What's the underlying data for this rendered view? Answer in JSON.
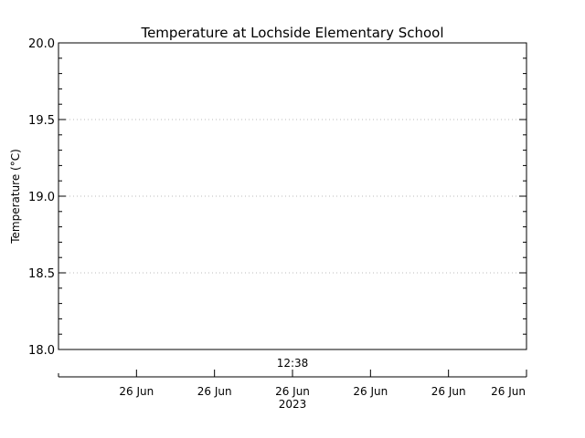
{
  "chart_data": {
    "type": "line",
    "title": "Temperature at Lochside Elementary School",
    "ylabel": "Temperature (°C)",
    "xlabel": "",
    "ylim": [
      18.0,
      20.0
    ],
    "y_major_ticks": [
      18.0,
      18.5,
      19.0,
      19.5,
      20.0
    ],
    "y_tick_labels": [
      "18.0",
      "18.5",
      "19.0",
      "19.5",
      "20.0"
    ],
    "y_minor_step": 0.1,
    "grid": "dotted horizontal at major ticks",
    "series": [],
    "plot_annotation": "12:38",
    "x_tick_labels": [
      "26 Jun",
      "26 Jun",
      "26 Jun",
      "26 Jun",
      "26 Jun",
      "26 Jun"
    ],
    "x_year_label": "2023",
    "colors": {
      "axis": "#000000",
      "grid": "#bbbbbb",
      "background": "#ffffff"
    }
  }
}
